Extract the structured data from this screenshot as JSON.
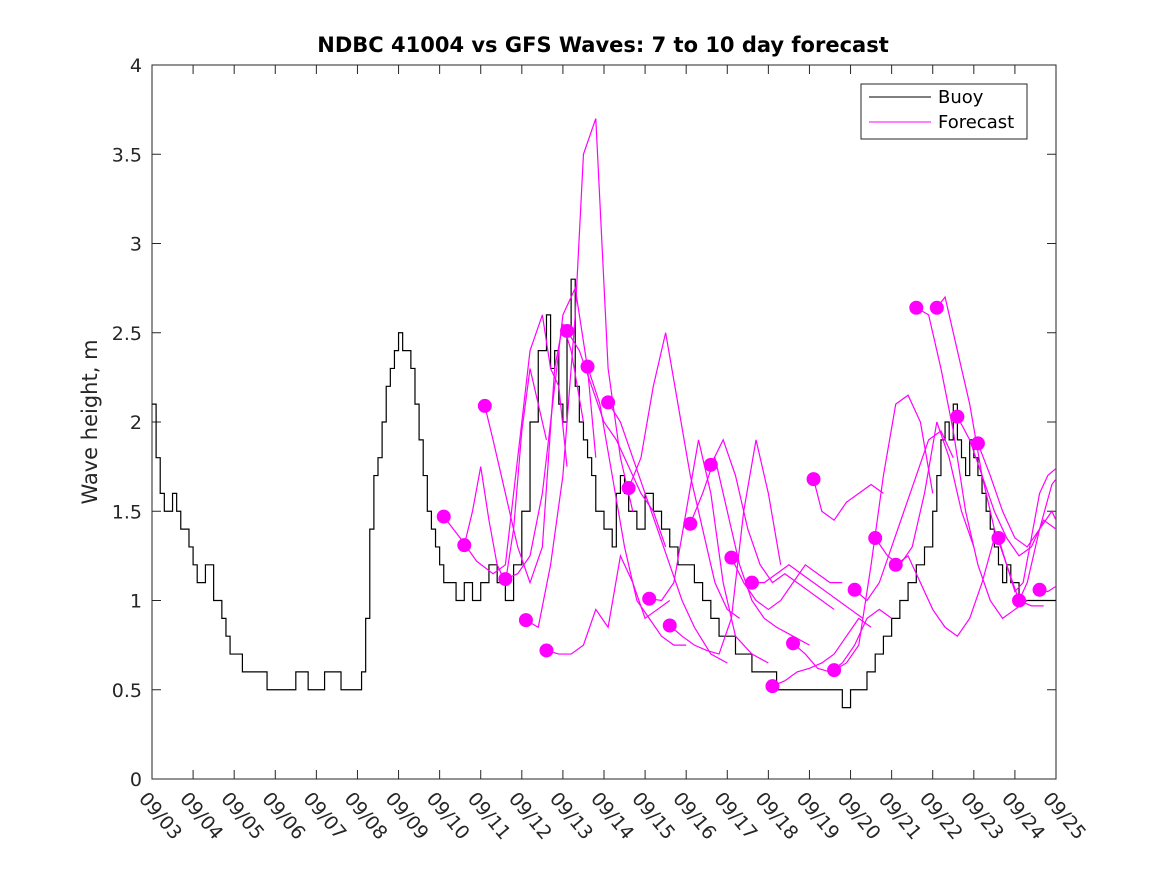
{
  "chart_data": {
    "type": "line",
    "title": "NDBC 41004 vs GFS Waves: 7 to 10 day forecast",
    "xlabel": "",
    "ylabel": "Wave height, m",
    "xlim": [
      0,
      22
    ],
    "ylim": [
      0,
      4
    ],
    "yticks": [
      0,
      0.5,
      1,
      1.5,
      2,
      2.5,
      3,
      3.5,
      4
    ],
    "ytick_labels": [
      "0",
      "0.5",
      "1",
      "1.5",
      "2",
      "2.5",
      "3",
      "3.5",
      "4"
    ],
    "xtick_labels": [
      "09/03",
      "09/04",
      "09/05",
      "09/06",
      "09/07",
      "09/08",
      "09/09",
      "09/10",
      "09/11",
      "09/12",
      "09/13",
      "09/14",
      "09/15",
      "09/16",
      "09/17",
      "09/18",
      "09/19",
      "09/20",
      "09/21",
      "09/22",
      "09/23",
      "09/24",
      "09/25"
    ],
    "x_units": "days since 09/03 00:00",
    "legend": {
      "position": "top-right",
      "entries": [
        {
          "name": "Buoy",
          "color": "#000000"
        },
        {
          "name": "Forecast",
          "color": "#ff00ff"
        }
      ]
    },
    "colors": {
      "buoy": "#000000",
      "forecast": "#ff00ff",
      "axes": "#262626"
    },
    "series": [
      {
        "name": "Buoy",
        "style": "step",
        "x": [
          0,
          0.1,
          0.2,
          0.3,
          0.5,
          0.6,
          0.7,
          0.9,
          1.0,
          1.1,
          1.3,
          1.5,
          1.7,
          1.8,
          1.9,
          2.1,
          2.2,
          2.4,
          2.6,
          2.8,
          3.0,
          3.2,
          3.5,
          3.8,
          4.2,
          4.6,
          5.0,
          5.1,
          5.2,
          5.3,
          5.4,
          5.5,
          5.6,
          5.7,
          5.8,
          5.9,
          6.0,
          6.1,
          6.2,
          6.3,
          6.4,
          6.5,
          6.6,
          6.7,
          6.8,
          6.9,
          7.0,
          7.1,
          7.2,
          7.4,
          7.6,
          7.8,
          8.0,
          8.2,
          8.4,
          8.6,
          8.8,
          9.0,
          9.2,
          9.4,
          9.6,
          9.7,
          9.8,
          9.9,
          10.0,
          10.1,
          10.2,
          10.3,
          10.4,
          10.5,
          10.6,
          10.7,
          10.8,
          11.0,
          11.2,
          11.3,
          11.4,
          11.5,
          11.6,
          11.8,
          12.0,
          12.2,
          12.4,
          12.6,
          12.8,
          13.0,
          13.2,
          13.4,
          13.6,
          13.8,
          14.0,
          14.2,
          14.4,
          14.6,
          14.8,
          15.0,
          15.2,
          15.4,
          15.6,
          15.8,
          16.0,
          16.2,
          16.4,
          16.6,
          16.8,
          17.0,
          17.2,
          17.4,
          17.6,
          17.8,
          18.0,
          18.2,
          18.4,
          18.6,
          18.8,
          19.0,
          19.1,
          19.2,
          19.3,
          19.4,
          19.5,
          19.6,
          19.7,
          19.8,
          19.9,
          20.0,
          20.1,
          20.2,
          20.3,
          20.4,
          20.5,
          20.6,
          20.7,
          20.8,
          20.9,
          21.0,
          21.1,
          21.2,
          21.4,
          21.6,
          21.8,
          22.0
        ],
        "y": [
          2.1,
          1.8,
          1.6,
          1.5,
          1.6,
          1.5,
          1.4,
          1.3,
          1.2,
          1.1,
          1.2,
          1.0,
          0.9,
          0.8,
          0.7,
          0.7,
          0.6,
          0.6,
          0.6,
          0.5,
          0.5,
          0.5,
          0.6,
          0.5,
          0.6,
          0.5,
          0.5,
          0.6,
          0.9,
          1.4,
          1.7,
          1.8,
          2.0,
          2.2,
          2.3,
          2.4,
          2.5,
          2.4,
          2.4,
          2.3,
          2.1,
          1.9,
          1.7,
          1.5,
          1.4,
          1.3,
          1.2,
          1.1,
          1.1,
          1.0,
          1.1,
          1.0,
          1.1,
          1.2,
          1.1,
          1.0,
          1.2,
          1.5,
          2.0,
          2.4,
          2.6,
          2.3,
          2.4,
          2.1,
          2.0,
          2.5,
          2.8,
          2.2,
          2.0,
          1.9,
          1.8,
          1.7,
          1.5,
          1.4,
          1.3,
          1.6,
          1.7,
          1.6,
          1.5,
          1.4,
          1.6,
          1.5,
          1.4,
          1.3,
          1.2,
          1.2,
          1.1,
          1.0,
          0.9,
          0.8,
          0.8,
          0.7,
          0.7,
          0.6,
          0.6,
          0.6,
          0.5,
          0.5,
          0.5,
          0.5,
          0.5,
          0.5,
          0.5,
          0.5,
          0.4,
          0.5,
          0.5,
          0.6,
          0.7,
          0.8,
          0.9,
          1.0,
          1.1,
          1.2,
          1.3,
          1.5,
          1.7,
          1.9,
          2.0,
          1.9,
          2.1,
          1.9,
          1.8,
          1.7,
          1.9,
          1.8,
          1.7,
          1.6,
          1.5,
          1.4,
          1.3,
          1.2,
          1.1,
          1.2,
          1.1,
          1.1,
          1.0,
          1.0,
          1.0,
          1.0,
          1.0,
          1.0
        ]
      },
      {
        "name": "Forecast run 1",
        "style": "line",
        "x": [
          7.1,
          7.5,
          7.9,
          8.3,
          8.6,
          8.9,
          9.2,
          9.5,
          9.7,
          9.9,
          10.1
        ],
        "y": [
          1.47,
          1.35,
          1.22,
          1.15,
          1.2,
          1.8,
          2.4,
          2.6,
          2.3,
          2.2,
          1.75
        ]
      },
      {
        "name": "Forecast run 2",
        "style": "line",
        "x": [
          7.6,
          7.8,
          8.0,
          8.2,
          8.4,
          8.6,
          8.8,
          9.0,
          9.2,
          9.4,
          9.6
        ],
        "y": [
          1.31,
          1.5,
          1.75,
          1.45,
          1.2,
          1.1,
          1.4,
          1.95,
          2.3,
          2.1,
          1.9
        ]
      },
      {
        "name": "Forecast run 3",
        "style": "line",
        "x": [
          8.1,
          8.3,
          8.6,
          8.9,
          9.2,
          9.5,
          9.8,
          10.0,
          10.2,
          10.5
        ],
        "y": [
          2.09,
          1.9,
          1.6,
          1.3,
          1.1,
          1.3,
          2.3,
          2.55,
          2.4,
          2.0
        ]
      },
      {
        "name": "Forecast run 4",
        "style": "line",
        "x": [
          8.6,
          8.9,
          9.2,
          9.5,
          9.8,
          10.0,
          10.3,
          10.6,
          10.8
        ],
        "y": [
          1.12,
          1.15,
          1.25,
          1.6,
          2.2,
          2.6,
          2.75,
          2.3,
          1.8
        ]
      },
      {
        "name": "Forecast run 5",
        "style": "line",
        "x": [
          9.1,
          9.4,
          9.7,
          10.0,
          10.3,
          10.5,
          10.8,
          11.1,
          11.4,
          11.7
        ],
        "y": [
          0.89,
          0.85,
          1.2,
          1.7,
          2.6,
          3.5,
          3.7,
          2.3,
          1.8,
          1.5
        ]
      },
      {
        "name": "Forecast run 6",
        "style": "line",
        "x": [
          9.6,
          9.9,
          10.2,
          10.5,
          10.8,
          11.1,
          11.4,
          11.7,
          12.0,
          12.3,
          12.6
        ],
        "y": [
          0.72,
          0.7,
          0.7,
          0.75,
          0.95,
          0.85,
          1.25,
          1.1,
          0.9,
          0.95,
          1.0
        ]
      },
      {
        "name": "Forecast run 7",
        "style": "line",
        "x": [
          10.1,
          10.4,
          10.7,
          11.0,
          11.3,
          11.6,
          11.9,
          12.2,
          12.5
        ],
        "y": [
          2.51,
          2.4,
          2.2,
          2.0,
          1.9,
          1.75,
          1.6,
          1.5,
          1.3
        ]
      },
      {
        "name": "Forecast run 8",
        "style": "line",
        "x": [
          10.6,
          10.9,
          11.2,
          11.5,
          11.8,
          12.1,
          12.4,
          12.7,
          13.0
        ],
        "y": [
          2.31,
          2.1,
          1.7,
          1.3,
          1.0,
          0.9,
          0.8,
          0.75,
          0.75
        ]
      },
      {
        "name": "Forecast run 9",
        "style": "line",
        "x": [
          11.1,
          11.4,
          11.7,
          12.0,
          12.3,
          12.6,
          12.9,
          13.2,
          13.6,
          14.0
        ],
        "y": [
          2.11,
          2.0,
          1.8,
          1.6,
          1.4,
          1.2,
          1.0,
          0.85,
          0.7,
          0.65
        ]
      },
      {
        "name": "Forecast run 10",
        "style": "line",
        "x": [
          11.6,
          11.9,
          12.2,
          12.5,
          12.8,
          13.1,
          13.4,
          13.7,
          14.0,
          14.3
        ],
        "y": [
          1.63,
          1.8,
          2.2,
          2.5,
          2.1,
          1.7,
          1.4,
          1.1,
          0.95,
          0.9
        ]
      },
      {
        "name": "Forecast run 11",
        "style": "line",
        "x": [
          12.1,
          12.4,
          12.7,
          13.0,
          13.3,
          13.6,
          13.9,
          14.2,
          14.6,
          15.0
        ],
        "y": [
          1.01,
          1.0,
          1.1,
          1.5,
          1.9,
          1.6,
          1.1,
          0.8,
          0.7,
          0.65
        ]
      },
      {
        "name": "Forecast run 12",
        "style": "line",
        "x": [
          12.6,
          12.9,
          13.2,
          13.5,
          13.8,
          14.1,
          14.4,
          14.7,
          15.0,
          15.3
        ],
        "y": [
          0.86,
          0.8,
          0.75,
          0.72,
          0.7,
          0.9,
          1.5,
          1.9,
          1.6,
          1.2
        ]
      },
      {
        "name": "Forecast run 13",
        "style": "line",
        "x": [
          13.1,
          13.4,
          13.7,
          14.0,
          14.3,
          14.6,
          14.9,
          15.2,
          15.6,
          16.0
        ],
        "y": [
          1.43,
          1.6,
          1.8,
          1.5,
          1.2,
          1.0,
          0.9,
          0.85,
          0.8,
          0.75
        ]
      },
      {
        "name": "Forecast run 14",
        "style": "line",
        "x": [
          13.6,
          13.9,
          14.2,
          14.5,
          14.8,
          15.1,
          15.4,
          15.7,
          16.0,
          16.3,
          16.6
        ],
        "y": [
          1.76,
          1.9,
          1.7,
          1.4,
          1.2,
          1.1,
          1.15,
          1.1,
          1.05,
          1.0,
          0.95
        ]
      },
      {
        "name": "Forecast run 15",
        "style": "line",
        "x": [
          14.1,
          14.4,
          14.7,
          15.0,
          15.3,
          15.6,
          15.9,
          16.2,
          16.5,
          16.8
        ],
        "y": [
          1.24,
          1.1,
          1.0,
          0.95,
          1.0,
          1.1,
          1.2,
          1.15,
          1.1,
          1.1
        ]
      },
      {
        "name": "Forecast run 16",
        "style": "line",
        "x": [
          14.6,
          14.9,
          15.2,
          15.5,
          15.8,
          16.1,
          16.4,
          16.7,
          17.0,
          17.3
        ],
        "y": [
          1.1,
          1.1,
          1.15,
          1.2,
          1.15,
          1.1,
          1.05,
          1.0,
          0.95,
          0.9
        ]
      },
      {
        "name": "Forecast run 17",
        "style": "line",
        "x": [
          15.1,
          15.4,
          15.7,
          16.0,
          16.3,
          16.6,
          16.9,
          17.2,
          17.5
        ],
        "y": [
          0.52,
          0.55,
          0.6,
          0.62,
          0.65,
          0.7,
          0.8,
          0.9,
          0.85
        ]
      },
      {
        "name": "Forecast run 18",
        "style": "line",
        "x": [
          15.6,
          15.9,
          16.2,
          16.5,
          16.8,
          17.1,
          17.4,
          17.7,
          18.0
        ],
        "y": [
          0.76,
          0.7,
          0.62,
          0.6,
          0.65,
          0.75,
          0.9,
          0.95,
          0.9
        ]
      },
      {
        "name": "Forecast run 19",
        "style": "line",
        "x": [
          16.1,
          16.3,
          16.6,
          16.9,
          17.2,
          17.5,
          17.8
        ],
        "y": [
          1.68,
          1.5,
          1.45,
          1.55,
          1.6,
          1.65,
          1.6
        ]
      },
      {
        "name": "Forecast run 20",
        "style": "line",
        "x": [
          16.6,
          16.9,
          17.2,
          17.5,
          17.8,
          18.1,
          18.4,
          18.7,
          19.0
        ],
        "y": [
          0.61,
          0.65,
          0.75,
          1.2,
          1.7,
          2.1,
          2.15,
          2.0,
          1.6
        ]
      },
      {
        "name": "Forecast run 21",
        "style": "line",
        "x": [
          17.1,
          17.4,
          17.7,
          18.0,
          18.3,
          18.6,
          18.9,
          19.2,
          19.5
        ],
        "y": [
          1.06,
          1.0,
          1.1,
          1.3,
          1.5,
          1.7,
          1.9,
          1.95,
          1.8
        ]
      },
      {
        "name": "Forecast run 22",
        "style": "line",
        "x": [
          17.6,
          17.9,
          18.2,
          18.5,
          18.8,
          19.1,
          19.4,
          19.7,
          20.0
        ],
        "y": [
          1.35,
          1.25,
          1.2,
          1.3,
          1.6,
          2.0,
          1.8,
          1.5,
          1.3
        ]
      },
      {
        "name": "Forecast run 23",
        "style": "line",
        "x": [
          18.1,
          18.4,
          18.7,
          19.0,
          19.3,
          19.6,
          19.9,
          20.2,
          20.5
        ],
        "y": [
          1.2,
          1.25,
          1.1,
          0.95,
          0.85,
          0.8,
          0.9,
          1.1,
          1.35
        ]
      },
      {
        "name": "Forecast run 24",
        "style": "line",
        "x": [
          18.6,
          18.9,
          19.2,
          19.5,
          19.8,
          20.1,
          20.4,
          20.7,
          21.0,
          21.3
        ],
        "y": [
          2.64,
          2.6,
          2.3,
          1.95,
          1.5,
          1.2,
          1.0,
          0.9,
          0.95,
          1.0
        ]
      },
      {
        "name": "Forecast run 25",
        "style": "line",
        "x": [
          19.1,
          19.3,
          19.6,
          19.9,
          20.2,
          20.5,
          20.8,
          21.1,
          21.4,
          21.7
        ],
        "y": [
          2.64,
          2.7,
          2.4,
          2.1,
          1.7,
          1.4,
          1.2,
          1.0,
          0.97,
          0.97
        ]
      },
      {
        "name": "Forecast run 26",
        "style": "line",
        "x": [
          19.6,
          19.9,
          20.2,
          20.5,
          20.8,
          21.1,
          21.4,
          21.7,
          22.0
        ],
        "y": [
          2.03,
          1.9,
          1.7,
          1.5,
          1.35,
          1.25,
          1.3,
          1.45,
          1.4
        ]
      },
      {
        "name": "Forecast run 27",
        "style": "line",
        "x": [
          20.1,
          20.4,
          20.7,
          21.0,
          21.3,
          21.6,
          21.9,
          22.0
        ],
        "y": [
          1.88,
          1.7,
          1.5,
          1.35,
          1.3,
          1.4,
          1.5,
          1.45
        ]
      },
      {
        "name": "Forecast run 28",
        "style": "line",
        "x": [
          20.6,
          20.8,
          21.0,
          21.2,
          21.4,
          21.6,
          21.8,
          22.0
        ],
        "y": [
          1.35,
          1.2,
          1.05,
          1.1,
          1.35,
          1.6,
          1.7,
          1.74
        ]
      },
      {
        "name": "Forecast run 29",
        "style": "line",
        "x": [
          21.1,
          21.3,
          21.6,
          21.9,
          22.0
        ],
        "y": [
          1.0,
          1.1,
          1.4,
          1.65,
          1.68
        ]
      },
      {
        "name": "Forecast run 30",
        "style": "line",
        "x": [
          21.6,
          21.8,
          22.0
        ],
        "y": [
          1.06,
          1.05,
          1.08
        ]
      }
    ],
    "forecast_start_markers": {
      "x": [
        7.1,
        7.6,
        8.1,
        8.6,
        9.1,
        9.6,
        10.1,
        10.6,
        11.1,
        11.6,
        12.1,
        12.6,
        13.1,
        13.6,
        14.1,
        14.6,
        15.1,
        15.6,
        16.1,
        16.6,
        17.1,
        17.6,
        18.1,
        18.6,
        19.1,
        19.6,
        20.1,
        20.6,
        21.1,
        21.6
      ],
      "y": [
        1.47,
        1.31,
        2.09,
        1.12,
        0.89,
        0.72,
        2.51,
        2.31,
        2.11,
        1.63,
        1.01,
        0.86,
        1.43,
        1.76,
        1.24,
        1.1,
        0.52,
        0.76,
        1.68,
        0.61,
        1.06,
        1.35,
        1.2,
        2.64,
        2.64,
        2.03,
        1.88,
        1.35,
        1.0,
        1.06
      ]
    }
  }
}
